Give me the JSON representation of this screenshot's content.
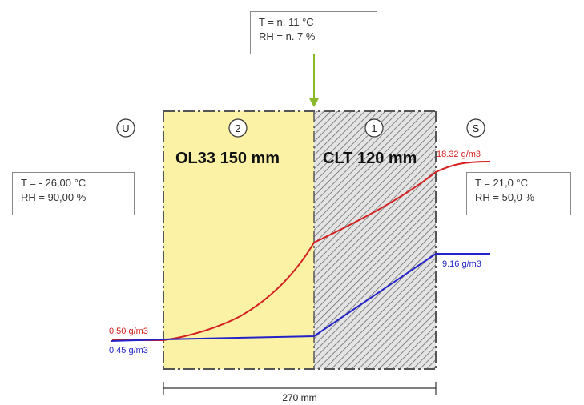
{
  "zones": {
    "outside": {
      "marker": "U"
    },
    "inside": {
      "marker": "S"
    }
  },
  "layers": [
    {
      "marker": "2",
      "label": "OL33 150 mm",
      "color": "#fbf2a6"
    },
    {
      "marker": "1",
      "label": "CLT 120 mm",
      "color": "#d8d8d8"
    }
  ],
  "conditions": {
    "interface": {
      "line1": "T = n. 11 °C",
      "line2": "RH = n. 7 %"
    },
    "outside": {
      "line1": "T = - 26,00 °C",
      "line2": "RH = 90,00 %"
    },
    "inside": {
      "line1": "T = 21,0 °C",
      "line2": "RH = 50,0 %"
    }
  },
  "curves": {
    "saturation": {
      "color": "#d42020",
      "start_label": "0.50 g/m3",
      "end_label": "18.32 g/m3"
    },
    "vapour": {
      "color": "#2323c8",
      "start_label": "0.45 g/m3",
      "end_label": "9.16 g/m3"
    }
  },
  "dimension": {
    "label": "270 mm"
  },
  "colors": {
    "arrow": "#8ab82a",
    "wall_edge": "#555555"
  }
}
